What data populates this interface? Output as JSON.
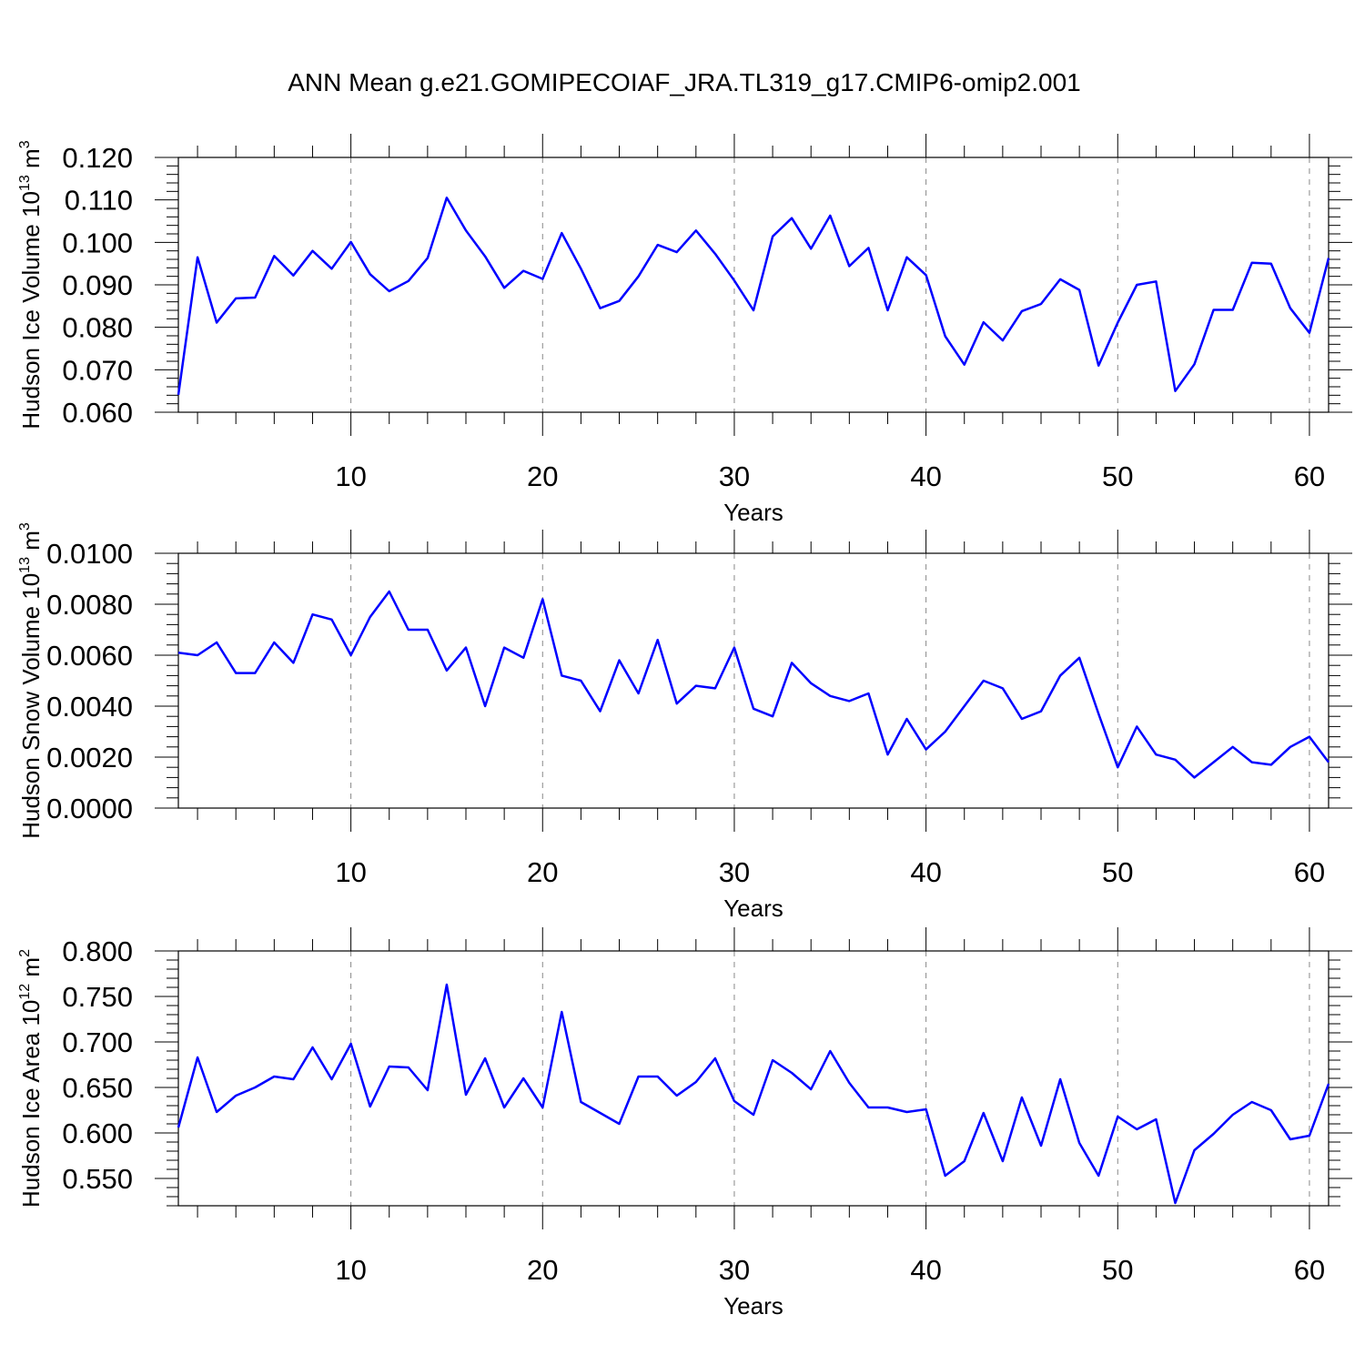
{
  "title": "ANN Mean g.e21.GOMIPECOIAF_JRA.TL319_g17.CMIP6-omip2.001",
  "colors": {
    "line": "#0000ff",
    "axis": "#000000",
    "grid": "#888888"
  },
  "chart_data": [
    {
      "type": "line",
      "ylabel": "Hudson Ice Volume 10",
      "ylabel_exp": "13",
      "ylabel_unit": " m",
      "ylabel_unit_exp": "3",
      "xlabel": "Years",
      "xlim": [
        1,
        61
      ],
      "ylim": [
        0.06,
        0.12
      ],
      "yticks": [
        0.06,
        0.07,
        0.08,
        0.09,
        0.1,
        0.11,
        0.12
      ],
      "ytick_labels": [
        "0.060",
        "0.070",
        "0.080",
        "0.090",
        "0.100",
        "0.110",
        "0.120"
      ],
      "xticks": [
        10,
        20,
        30,
        40,
        50,
        60
      ],
      "xtick_labels": [
        "10",
        "20",
        "30",
        "40",
        "50",
        "60"
      ],
      "grid": "dashed vertical at major x ticks",
      "x": [
        1,
        2,
        3,
        4,
        5,
        6,
        7,
        8,
        9,
        10,
        11,
        12,
        13,
        14,
        15,
        16,
        17,
        18,
        19,
        20,
        21,
        22,
        23,
        24,
        25,
        26,
        27,
        28,
        29,
        30,
        31,
        32,
        33,
        34,
        35,
        36,
        37,
        38,
        39,
        40,
        41,
        42,
        43,
        44,
        45,
        46,
        47,
        48,
        49,
        50,
        51,
        52,
        53,
        54,
        55,
        56,
        57,
        58,
        59,
        60,
        61
      ],
      "values": [
        0.0641,
        0.0965,
        0.0811,
        0.0868,
        0.087,
        0.0968,
        0.0922,
        0.098,
        0.0938,
        0.1001,
        0.0925,
        0.0885,
        0.0909,
        0.0963,
        0.1105,
        0.1028,
        0.0967,
        0.0893,
        0.0933,
        0.0914,
        0.1022,
        0.0938,
        0.0845,
        0.0862,
        0.092,
        0.0994,
        0.0977,
        0.1028,
        0.0973,
        0.091,
        0.084,
        0.1014,
        0.1057,
        0.0985,
        0.1063,
        0.0944,
        0.0987,
        0.084,
        0.0965,
        0.0923,
        0.0779,
        0.0712,
        0.0812,
        0.0769,
        0.0838,
        0.0855,
        0.0913,
        0.0888,
        0.071,
        0.0811,
        0.09,
        0.0908,
        0.065,
        0.0713,
        0.0841,
        0.0841,
        0.0952,
        0.095,
        0.0845,
        0.0787,
        0.0963
      ]
    },
    {
      "type": "line",
      "ylabel": "Hudson Snow Volume 10",
      "ylabel_exp": "13",
      "ylabel_unit": " m",
      "ylabel_unit_exp": "3",
      "xlabel": "Years",
      "xlim": [
        1,
        61
      ],
      "ylim": [
        0.0,
        0.01
      ],
      "yticks": [
        0.0,
        0.002,
        0.004,
        0.006,
        0.008,
        0.01
      ],
      "ytick_labels": [
        "0.0000",
        "0.0020",
        "0.0040",
        "0.0060",
        "0.0080",
        "0.0100"
      ],
      "xticks": [
        10,
        20,
        30,
        40,
        50,
        60
      ],
      "xtick_labels": [
        "10",
        "20",
        "30",
        "40",
        "50",
        "60"
      ],
      "grid": "dashed vertical at major x ticks",
      "x": [
        1,
        2,
        3,
        4,
        5,
        6,
        7,
        8,
        9,
        10,
        11,
        12,
        13,
        14,
        15,
        16,
        17,
        18,
        19,
        20,
        21,
        22,
        23,
        24,
        25,
        26,
        27,
        28,
        29,
        30,
        31,
        32,
        33,
        34,
        35,
        36,
        37,
        38,
        39,
        40,
        41,
        42,
        43,
        44,
        45,
        46,
        47,
        48,
        49,
        50,
        51,
        52,
        53,
        54,
        55,
        56,
        57,
        58,
        59,
        60,
        61
      ],
      "values": [
        0.0061,
        0.006,
        0.0065,
        0.0053,
        0.0053,
        0.0065,
        0.0057,
        0.0076,
        0.0074,
        0.006,
        0.0075,
        0.0085,
        0.007,
        0.007,
        0.0054,
        0.0063,
        0.004,
        0.0063,
        0.0059,
        0.0082,
        0.0052,
        0.005,
        0.0038,
        0.0058,
        0.0045,
        0.0066,
        0.0041,
        0.0048,
        0.0047,
        0.0063,
        0.0039,
        0.0036,
        0.0057,
        0.0049,
        0.0044,
        0.0042,
        0.0045,
        0.0021,
        0.0035,
        0.0023,
        0.003,
        0.004,
        0.005,
        0.0047,
        0.0035,
        0.0038,
        0.0052,
        0.0059,
        0.0037,
        0.0016,
        0.0032,
        0.0021,
        0.0019,
        0.0012,
        0.0018,
        0.0024,
        0.0018,
        0.0017,
        0.0024,
        0.0028,
        0.0018
      ]
    },
    {
      "type": "line",
      "ylabel": "Hudson Ice Area 10",
      "ylabel_exp": "12",
      "ylabel_unit": " m",
      "ylabel_unit_exp": "2",
      "xlabel": "Years",
      "xlim": [
        1,
        61
      ],
      "ylim": [
        0.52,
        0.8
      ],
      "yticks": [
        0.55,
        0.6,
        0.65,
        0.7,
        0.75,
        0.8
      ],
      "ytick_labels": [
        "0.550",
        "0.600",
        "0.650",
        "0.700",
        "0.750",
        "0.800"
      ],
      "xticks": [
        10,
        20,
        30,
        40,
        50,
        60
      ],
      "xtick_labels": [
        "10",
        "20",
        "30",
        "40",
        "50",
        "60"
      ],
      "grid": "dashed vertical at major x ticks",
      "x": [
        1,
        2,
        3,
        4,
        5,
        6,
        7,
        8,
        9,
        10,
        11,
        12,
        13,
        14,
        15,
        16,
        17,
        18,
        19,
        20,
        21,
        22,
        23,
        24,
        25,
        26,
        27,
        28,
        29,
        30,
        31,
        32,
        33,
        34,
        35,
        36,
        37,
        38,
        39,
        40,
        41,
        42,
        43,
        44,
        45,
        46,
        47,
        48,
        49,
        50,
        51,
        52,
        53,
        54,
        55,
        56,
        57,
        58,
        59,
        60,
        61
      ],
      "values": [
        0.606,
        0.683,
        0.623,
        0.641,
        0.65,
        0.662,
        0.659,
        0.694,
        0.659,
        0.698,
        0.629,
        0.673,
        0.672,
        0.647,
        0.763,
        0.642,
        0.682,
        0.628,
        0.66,
        0.628,
        0.733,
        0.634,
        0.622,
        0.61,
        0.662,
        0.662,
        0.641,
        0.656,
        0.682,
        0.635,
        0.62,
        0.68,
        0.666,
        0.648,
        0.69,
        0.655,
        0.628,
        0.628,
        0.623,
        0.626,
        0.553,
        0.569,
        0.622,
        0.569,
        0.639,
        0.586,
        0.659,
        0.589,
        0.553,
        0.618,
        0.604,
        0.615,
        0.523,
        0.581,
        0.599,
        0.62,
        0.634,
        0.625,
        0.593,
        0.597,
        0.654
      ]
    }
  ]
}
